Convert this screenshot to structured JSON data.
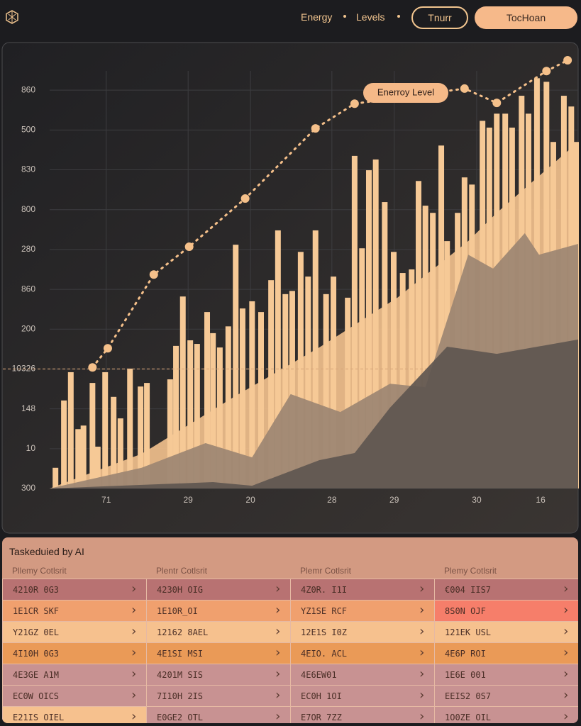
{
  "header": {
    "nav": [
      "Energy",
      "Levels"
    ],
    "buttons": [
      "Tnurr",
      "TocHoan"
    ]
  },
  "chart_data": {
    "type": "mixed",
    "xlim": [
      0,
      100
    ],
    "ylim": [
      0,
      110
    ],
    "xticks": [
      {
        "value": 10.7,
        "label": "71"
      },
      {
        "value": 26.2,
        "label": "29"
      },
      {
        "value": 38.0,
        "label": "20"
      },
      {
        "value": 53.4,
        "label": "28"
      },
      {
        "value": 65.2,
        "label": "29"
      },
      {
        "value": 80.8,
        "label": "30"
      },
      {
        "value": 92.9,
        "label": "16"
      }
    ],
    "yticks": [
      {
        "value": 100,
        "label": "860"
      },
      {
        "value": 90,
        "label": "500"
      },
      {
        "value": 80,
        "label": "830"
      },
      {
        "value": 70,
        "label": "800"
      },
      {
        "value": 60,
        "label": "280"
      },
      {
        "value": 50,
        "label": "860"
      },
      {
        "value": 40,
        "label": "200"
      },
      {
        "value": 30,
        "label": "10326"
      },
      {
        "value": 20,
        "label": "148"
      },
      10,
      {
        "value": 0,
        "label": "300"
      }
    ],
    "grid": true,
    "reference_line": 30,
    "annotation": "Enerroy Level",
    "series": [
      {
        "type": "area",
        "color": "#f0bf8c",
        "x": [
          0,
          17.4,
          34.9,
          51.0,
          65.8,
          79.2,
          84.6,
          100
        ],
        "values": [
          0,
          8.7,
          23.0,
          35.4,
          47.9,
          62.1,
          69.2,
          87.0
        ]
      },
      {
        "type": "bar",
        "color": "#f6c996",
        "x": [
          1.1,
          2.7,
          4.0,
          5.4,
          6.4,
          8.1,
          9.1,
          10.5,
          12.1,
          13.4,
          15.2,
          17.2,
          18.4,
          22.8,
          23.9,
          25.2,
          26.6,
          27.9,
          29.8,
          30.9,
          32.2,
          33.8,
          35.2,
          36.5,
          38.3,
          40.0,
          41.9,
          43.2,
          44.6,
          45.9,
          47.5,
          48.9,
          50.3,
          52.3,
          53.7,
          56.4,
          57.7,
          59.1,
          60.4,
          61.7,
          63.4,
          65.1,
          66.8,
          68.5,
          69.8,
          71.1,
          72.5,
          74.1,
          75.2,
          77.2,
          78.5,
          79.9,
          81.9,
          83.2,
          84.6,
          86.2,
          87.5,
          89.3,
          90.6,
          92.2,
          94.0,
          95.3,
          97.3,
          98.7,
          99.6
        ],
        "values": [
          5.2,
          22.1,
          29.2,
          14.9,
          15.8,
          26.5,
          10.5,
          29.2,
          23.0,
          17.6,
          30.1,
          25.6,
          26.5,
          27.4,
          35.8,
          48.2,
          37.2,
          36.3,
          44.3,
          39.0,
          35.4,
          40.7,
          61.2,
          45.2,
          47.0,
          44.3,
          52.3,
          64.8,
          48.8,
          49.6,
          59.4,
          53.2,
          64.8,
          48.8,
          53.2,
          47.9,
          83.5,
          60.3,
          79.9,
          82.6,
          71.9,
          59.4,
          54.1,
          55.0,
          77.2,
          71.0,
          69.2,
          86.1,
          62.1,
          69.2,
          78.1,
          76.3,
          92.3,
          90.6,
          94.1,
          94.1,
          90.6,
          98.6,
          94.1,
          103.0,
          102.1,
          87.0,
          98.6,
          95.9,
          87.0
        ]
      },
      {
        "type": "area",
        "color": "#9c8672",
        "x": [
          0,
          17.4,
          29.5,
          38.3,
          45.6,
          55.0,
          64.4,
          71.1,
          79.2,
          83.9,
          89.9,
          92.6,
          100
        ],
        "values": [
          0,
          5.2,
          11.4,
          7.8,
          23.7,
          19.2,
          26.3,
          25.4,
          58.7,
          55.2,
          64.1,
          58.7,
          61.4
        ]
      },
      {
        "type": "area",
        "color": "#5e5650",
        "x": [
          0,
          30.9,
          38.3,
          51.0,
          57.7,
          64.4,
          75.2,
          84.6,
          100
        ],
        "values": [
          0,
          1.6,
          0.7,
          7.1,
          8.9,
          20.3,
          35.6,
          33.8,
          37.4
        ]
      },
      {
        "type": "line",
        "color": "#f5c08a",
        "x": [
          8.1,
          11.0,
          19.7,
          26.4,
          37.0,
          50.3,
          57.7,
          78.5,
          84.6,
          94.0,
          98.0
        ],
        "values": [
          30.4,
          35.2,
          53.7,
          60.7,
          72.8,
          90.4,
          96.6,
          100.4,
          96.8,
          104.8,
          107.5
        ]
      }
    ]
  },
  "table": {
    "title": "Taskeduied by AI",
    "headers": [
      "Pllemy Cotlsrit",
      "Plentr Cotlsrit",
      "Plemr Cotlsrit",
      "Plemy Cotlsrit"
    ],
    "rows": [
      [
        "4210R 0G3",
        "4230H OIG",
        "4Z0R. I1I",
        "€004 IIS7"
      ],
      [
        "1E1CR SKF",
        "1E10R_OI",
        "YZ1SE RCF",
        "8S0N OJF"
      ],
      [
        "Y21GZ 0EL",
        "12162 8AEL",
        "12E1S I0Z",
        "121EK USL"
      ],
      [
        "4I10H 0G3",
        "4E1SI MSI",
        "4EIO. ACL",
        "4E6P ROI"
      ],
      [
        "4E3GE A1M",
        "4201M SIS",
        "4E6EW01",
        "1E6E 001"
      ],
      [
        "EC0W OICS",
        "7I10H 2IS",
        "EC0H 1OI",
        "EEIS2 0S7"
      ],
      [
        "E21IS OIEL",
        "E0GE2 OTL",
        "E7OR 7ZZ",
        "1O0ZE OIL"
      ]
    ]
  }
}
